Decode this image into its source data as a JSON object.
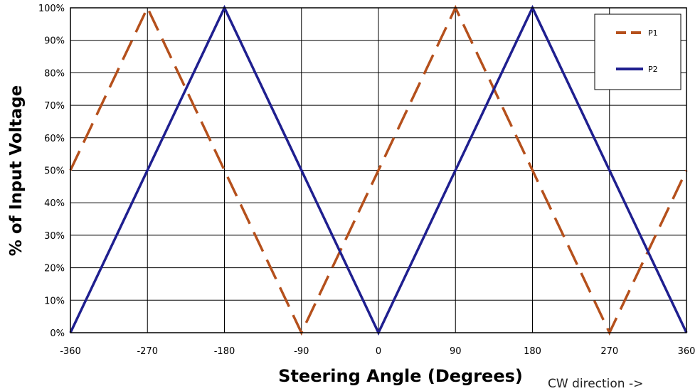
{
  "chart_data": {
    "type": "line",
    "title": "",
    "xlabel": "Steering Angle (Degrees)",
    "ylabel": "% of Input Voltage",
    "annotation": "CW direction  ->",
    "xlim": [
      -360,
      360
    ],
    "ylim": [
      0,
      100
    ],
    "x_ticks": [
      -360,
      -270,
      -180,
      -90,
      0,
      90,
      180,
      270,
      360
    ],
    "x_tick_labels": [
      "-360",
      "-270",
      "-180",
      "-90",
      "0",
      "90",
      "180",
      "270",
      "360"
    ],
    "y_ticks": [
      0,
      10,
      20,
      30,
      40,
      50,
      60,
      70,
      80,
      90,
      100
    ],
    "y_tick_labels": [
      "0%",
      "10%",
      "20%",
      "30%",
      "40%",
      "50%",
      "60%",
      "70%",
      "80%",
      "90%",
      "100%"
    ],
    "grid": true,
    "legend": "top-right",
    "series": [
      {
        "name": "P1",
        "color": "#b5501c",
        "style": "dashed",
        "x": [
          -360,
          -270,
          -90,
          90,
          270,
          360
        ],
        "y": [
          50,
          100,
          0,
          100,
          0,
          50
        ]
      },
      {
        "name": "P2",
        "color": "#1f1f8f",
        "style": "solid",
        "x": [
          -360,
          -180,
          0,
          180,
          360
        ],
        "y": [
          0,
          100,
          0,
          100,
          0
        ]
      }
    ]
  }
}
